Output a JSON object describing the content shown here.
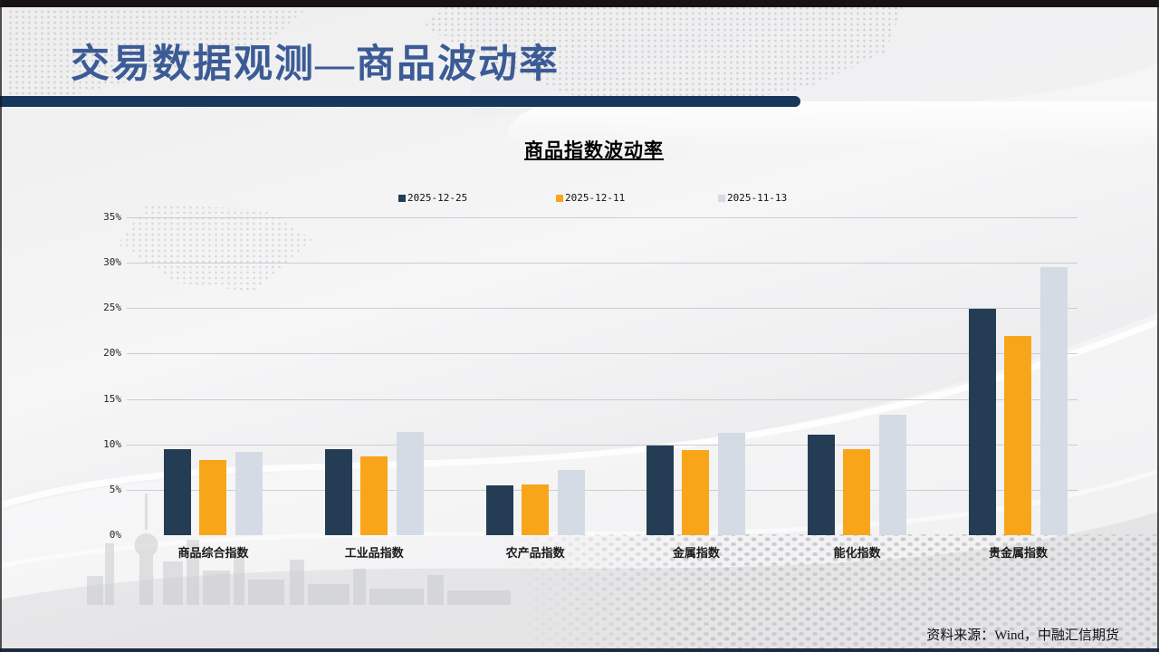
{
  "slide": {
    "title": "交易数据观测—商品波动率",
    "source_note": "资料来源：Wind，中融汇信期货"
  },
  "colors": {
    "title_text": "#3c5b96",
    "title_bar": "#16365c",
    "series_navy": "#243D54",
    "series_orange": "#F9A51A",
    "series_light": "#D5DBE4",
    "gridline": "#cacdd1"
  },
  "chart_data": {
    "type": "bar",
    "title": "商品指数波动率",
    "categories": [
      "商品综合指数",
      "工业品指数",
      "农产品指数",
      "金属指数",
      "能化指数",
      "贵金属指数"
    ],
    "series": [
      {
        "name": "2025-12-25",
        "color": "#243D54",
        "values": [
          9.5,
          9.5,
          5.5,
          9.9,
          11.1,
          24.9
        ]
      },
      {
        "name": "2025-12-11",
        "color": "#F9A51A",
        "values": [
          8.3,
          8.7,
          5.6,
          9.4,
          9.5,
          21.9
        ]
      },
      {
        "name": "2025-11-13",
        "color": "#D5DBE4",
        "values": [
          9.2,
          11.4,
          7.2,
          11.3,
          13.3,
          29.5
        ]
      }
    ],
    "xlabel": "",
    "ylabel": "",
    "ylim": [
      0,
      35
    ],
    "y_ticks": [
      "35%",
      "30%",
      "25%",
      "20%",
      "15%",
      "10%",
      "5%",
      "0%"
    ],
    "grid": true,
    "legend_position": "top"
  }
}
